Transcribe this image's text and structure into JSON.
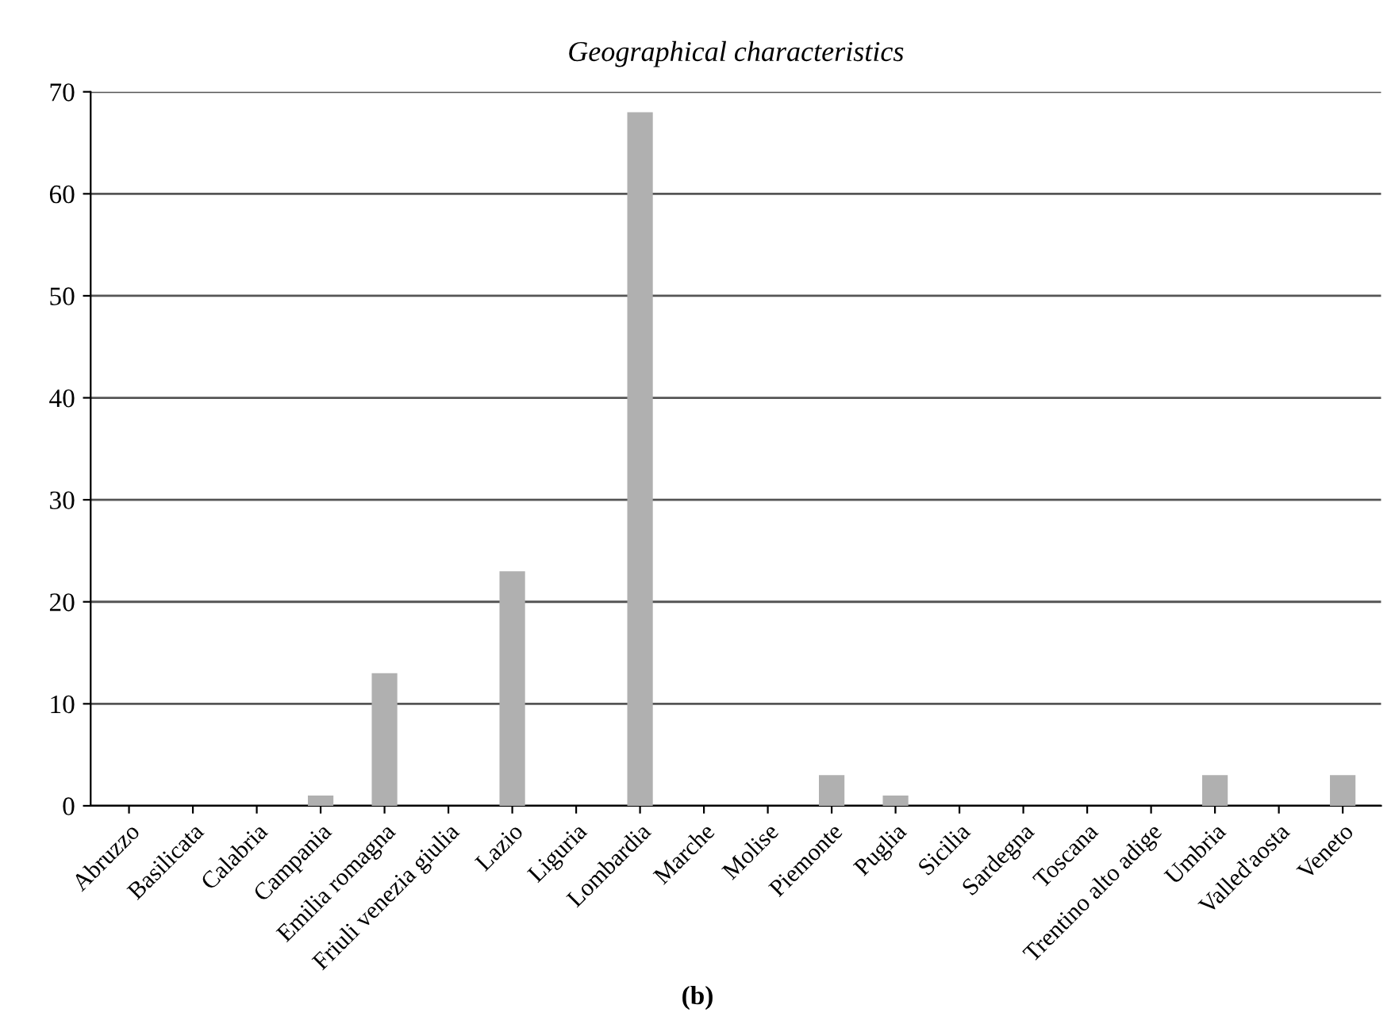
{
  "chart_data": {
    "type": "bar",
    "title": "Geographical characteristics",
    "categories": [
      "Abruzzo",
      "Basilicata",
      "Calabria",
      "Campania",
      "Emilia romagna",
      "Friuli venezia giulia",
      "Lazio",
      "Liguria",
      "Lombardia",
      "Marche",
      "Molise",
      "Piemonte",
      "Puglia",
      "Sicilia",
      "Sardegna",
      "Toscana",
      "Trentino alto adige",
      "Umbria",
      "Valled'aosta",
      "Veneto"
    ],
    "values": [
      0,
      0,
      0,
      1,
      13,
      0,
      23,
      0,
      68,
      0,
      0,
      3,
      1,
      0,
      0,
      0,
      0,
      3,
      0,
      3
    ],
    "color": "#b0b0b0",
    "ylim": [
      0,
      70
    ],
    "yticks": [
      0,
      10,
      20,
      30,
      40,
      50,
      60,
      70
    ],
    "grid": "y",
    "annotations": [
      "(b)"
    ]
  }
}
